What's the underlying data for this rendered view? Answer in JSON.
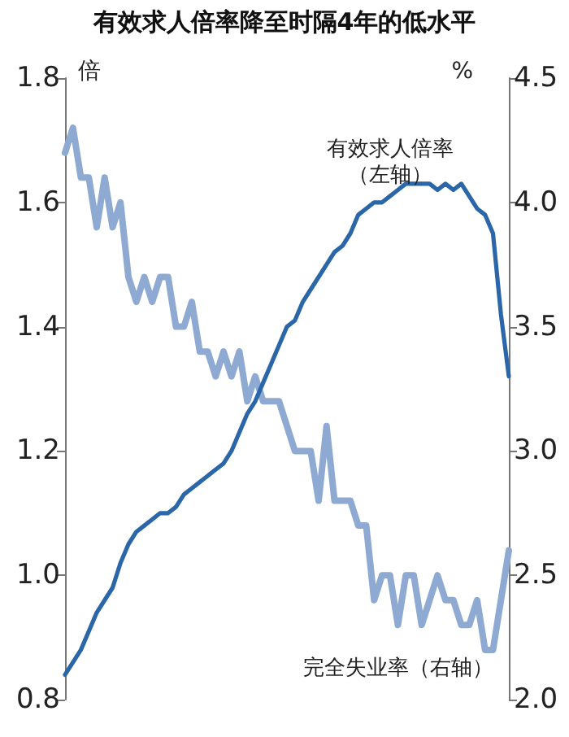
{
  "chart_data": {
    "type": "line",
    "title": "有效求人倍率降至时隔4年的低水平",
    "ylabel": "倍",
    "y2label": "%",
    "categories": [
      null,
      null,
      null,
      null,
      null,
      null,
      null,
      null,
      null,
      null,
      null,
      null,
      null,
      null,
      null,
      null,
      null,
      null,
      null,
      null,
      null,
      null,
      null,
      null,
      null,
      null,
      null,
      null,
      null,
      null,
      null,
      null,
      null,
      null,
      null,
      null,
      null,
      null,
      null,
      null,
      null,
      null,
      null,
      null,
      null,
      null,
      null,
      null,
      null,
      null,
      null,
      null,
      null,
      null,
      null,
      null,
      null
    ],
    "series": [
      {
        "name": "有效求人倍率（左轴）",
        "color": "#2a66a8",
        "values": [
          0.84,
          0.86,
          0.88,
          0.91,
          0.94,
          0.96,
          0.98,
          1.02,
          1.05,
          1.07,
          1.08,
          1.09,
          1.1,
          1.1,
          1.11,
          1.13,
          1.14,
          1.15,
          1.16,
          1.17,
          1.18,
          1.2,
          1.23,
          1.26,
          1.28,
          1.31,
          1.34,
          1.37,
          1.4,
          1.41,
          1.44,
          1.46,
          1.48,
          1.5,
          1.52,
          1.53,
          1.55,
          1.58,
          1.59,
          1.6,
          1.6,
          1.61,
          1.62,
          1.63,
          1.63,
          1.63,
          1.63,
          1.62,
          1.63,
          1.62,
          1.63,
          1.61,
          1.59,
          1.58,
          1.55,
          1.42,
          1.32
        ]
      },
      {
        "name": "完全失业率（右轴）",
        "color": "#8eaad2",
        "axis": "y2",
        "values": [
          4.2,
          4.3,
          4.1,
          4.1,
          3.9,
          4.1,
          3.9,
          4.0,
          3.7,
          3.6,
          3.7,
          3.6,
          3.7,
          3.7,
          3.5,
          3.5,
          3.6,
          3.4,
          3.4,
          3.3,
          3.4,
          3.3,
          3.4,
          3.2,
          3.3,
          3.2,
          3.2,
          3.2,
          3.1,
          3.0,
          3.0,
          3.0,
          2.8,
          3.1,
          2.8,
          2.8,
          2.8,
          2.7,
          2.7,
          2.4,
          2.5,
          2.5,
          2.3,
          2.5,
          2.5,
          2.3,
          2.4,
          2.5,
          2.4,
          2.4,
          2.3,
          2.3,
          2.4,
          2.2,
          2.2,
          2.4,
          2.6
        ]
      }
    ],
    "ylim": [
      0.8,
      1.8
    ],
    "yticks": [
      0.8,
      {
        "value": 1,
        "label": "1.0"
      },
      1.2,
      1.4,
      1.6,
      1.8
    ],
    "y2lim": [
      2,
      4.5
    ],
    "y2ticks": [
      {
        "value": 2,
        "label": "2.0"
      },
      2.5,
      {
        "value": 3,
        "label": "3.0"
      },
      3.5,
      {
        "value": 4,
        "label": "4.0"
      },
      4.5
    ],
    "tick_labels": "y",
    "grid": false,
    "legend": false,
    "line_style": "solid"
  }
}
